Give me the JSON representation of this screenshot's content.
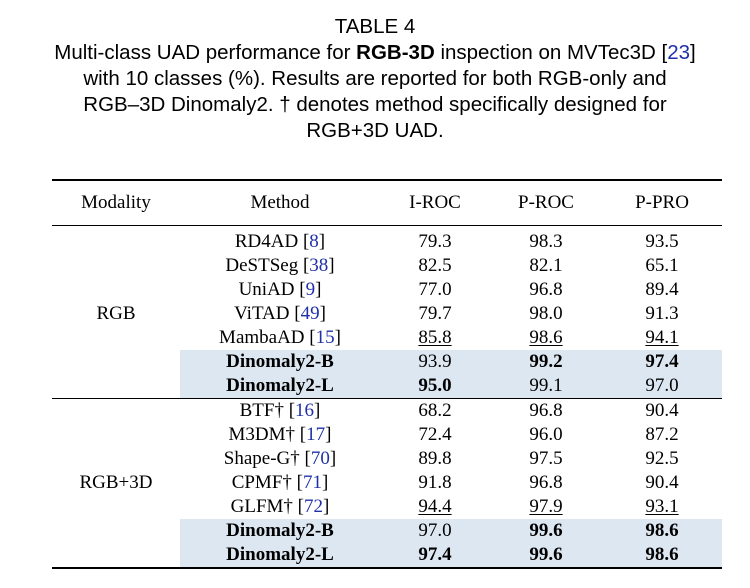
{
  "caption": {
    "table_no": "TABLE 4",
    "l1_a": "Multi-class UAD performance for ",
    "l1_b": "RGB-3D",
    "l1_c": " inspection on MVTec3D [",
    "l1_ref": "23",
    "l1_d": "]",
    "l2": "with 10 classes (%). Results are reported for both RGB-only and",
    "l3": "RGB–3D Dinomaly2. † denotes method specifically designed for",
    "l4": "RGB+3D UAD."
  },
  "headers": [
    "Modality",
    "Method",
    "I-ROC",
    "P-ROC",
    "P-PRO"
  ],
  "groups": [
    {
      "modality": "RGB",
      "rows": [
        {
          "name": "RD4AD [",
          "ref": "8",
          "i_roc": "79.3",
          "p_roc": "98.3",
          "p_pro": "93.5"
        },
        {
          "name": "DeSTSeg [",
          "ref": "38",
          "i_roc": "82.5",
          "p_roc": "82.1",
          "p_pro": "65.1"
        },
        {
          "name": "UniAD [",
          "ref": "9",
          "i_roc": "77.0",
          "p_roc": "96.8",
          "p_pro": "89.4"
        },
        {
          "name": "ViTAD [",
          "ref": "49",
          "i_roc": "79.7",
          "p_roc": "98.0",
          "p_pro": "91.3"
        },
        {
          "name": "MambaAD [",
          "ref": "15",
          "i_roc": "85.8",
          "p_roc": "98.6",
          "p_pro": "94.1"
        },
        {
          "name": "Dinomaly2-B",
          "i_roc": "93.9",
          "p_roc": "99.2",
          "p_pro": "97.4"
        },
        {
          "name": "Dinomaly2-L",
          "i_roc": "95.0",
          "p_roc": "99.1",
          "p_pro": "97.0"
        }
      ]
    },
    {
      "modality": "RGB+3D",
      "rows": [
        {
          "name": "BTF† [",
          "ref": "16",
          "i_roc": "68.2",
          "p_roc": "96.8",
          "p_pro": "90.4"
        },
        {
          "name": "M3DM† [",
          "ref": "17",
          "i_roc": "72.4",
          "p_roc": "96.0",
          "p_pro": "87.2"
        },
        {
          "name": "Shape-G† [",
          "ref": "70",
          "i_roc": "89.8",
          "p_roc": "97.5",
          "p_pro": "92.5"
        },
        {
          "name": "CPMF† [",
          "ref": "71",
          "i_roc": "91.8",
          "p_roc": "96.8",
          "p_pro": "90.4"
        },
        {
          "name": "GLFM† [",
          "ref": "72",
          "i_roc": "94.4",
          "p_roc": "97.9",
          "p_pro": "93.1"
        },
        {
          "name": "Dinomaly2-B",
          "i_roc": "97.0",
          "p_roc": "99.6",
          "p_pro": "98.6"
        },
        {
          "name": "Dinomaly2-L",
          "i_roc": "97.4",
          "p_roc": "99.6",
          "p_pro": "98.6"
        }
      ]
    }
  ],
  "close_bracket": "]"
}
